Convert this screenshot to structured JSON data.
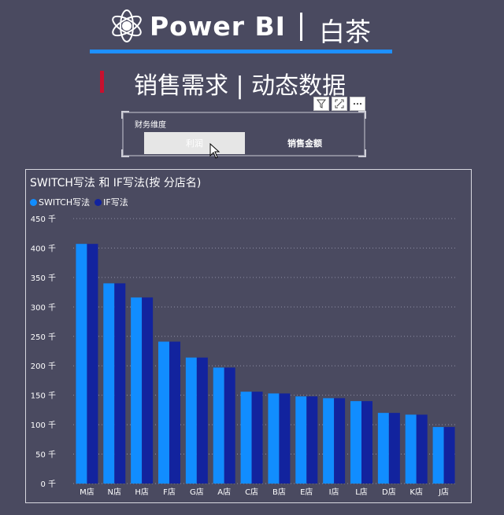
{
  "header": {
    "brand": "Power BI",
    "brand_cn": "白茶",
    "subtitle": "销售需求 | 动态数据"
  },
  "slicer": {
    "title": "财务维度",
    "options": [
      "利润",
      "销售金额"
    ],
    "selected": "利润"
  },
  "visual_header": {
    "icons": [
      "filter-icon",
      "focus-mode-icon",
      "more-options-icon"
    ]
  },
  "colors": {
    "background": "#4a4a60",
    "switch": "#118dff",
    "if": "#12239e",
    "accent_line": "#1e90ff",
    "accent_red": "#c8102e"
  },
  "chart_data": {
    "type": "bar",
    "title": "SWITCH写法 和 IF写法(按 分店名)",
    "categories": [
      "M店",
      "N店",
      "H店",
      "F店",
      "G店",
      "A店",
      "C店",
      "B店",
      "E店",
      "I店",
      "L店",
      "D店",
      "K店",
      "J店"
    ],
    "series": [
      {
        "name": "SWITCH写法",
        "values": [
          407,
          340,
          316,
          241,
          214,
          197,
          156,
          153,
          148,
          145,
          140,
          120,
          117,
          96
        ]
      },
      {
        "name": "IF写法",
        "values": [
          407,
          340,
          316,
          241,
          214,
          197,
          156,
          153,
          148,
          145,
          140,
          120,
          117,
          96
        ]
      }
    ],
    "ylim": [
      0,
      450
    ],
    "yticks": [
      0,
      50,
      100,
      150,
      200,
      250,
      300,
      350,
      400,
      450
    ],
    "ytick_labels": [
      "0 千",
      "50 千",
      "100 千",
      "150 千",
      "200 千",
      "250 千",
      "300 千",
      "350 千",
      "400 千",
      "450 千"
    ],
    "grid": true,
    "legend_position": "top-left"
  }
}
